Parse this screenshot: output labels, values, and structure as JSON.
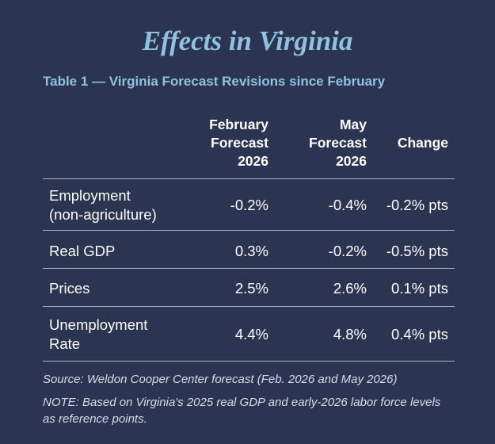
{
  "title": "Effects in Virginia",
  "table_caption": "Table 1 — Virginia Forecast Revisions since February",
  "headers": {
    "feb": [
      "February",
      "Forecast",
      "2026"
    ],
    "may": [
      "May",
      "Forecast",
      "2026"
    ],
    "change": "Change"
  },
  "rows": [
    {
      "label": [
        "Employment",
        "(non-agriculture)"
      ],
      "feb": "-0.2%",
      "may": "-0.4%",
      "change": "-0.2% pts"
    },
    {
      "label": [
        "Real GDP"
      ],
      "feb": "0.3%",
      "may": "-0.2%",
      "change": "-0.5% pts"
    },
    {
      "label": [
        "Prices"
      ],
      "feb": "2.5%",
      "may": "2.6%",
      "change": "0.1% pts"
    },
    {
      "label": [
        "Unemployment",
        "Rate"
      ],
      "feb": "4.4%",
      "may": "4.8%",
      "change": "0.4% pts"
    }
  ],
  "source": "Source: Weldon Cooper Center forecast (Feb. 2026 and May 2026)",
  "note": "NOTE: Based on Virginia's 2025 real GDP and early-2026 labor force levels as reference points.",
  "colors": {
    "background": "#2b3450",
    "accent": "#8ec2e0",
    "text": "#ffffff",
    "rule": "#a9afbe"
  }
}
